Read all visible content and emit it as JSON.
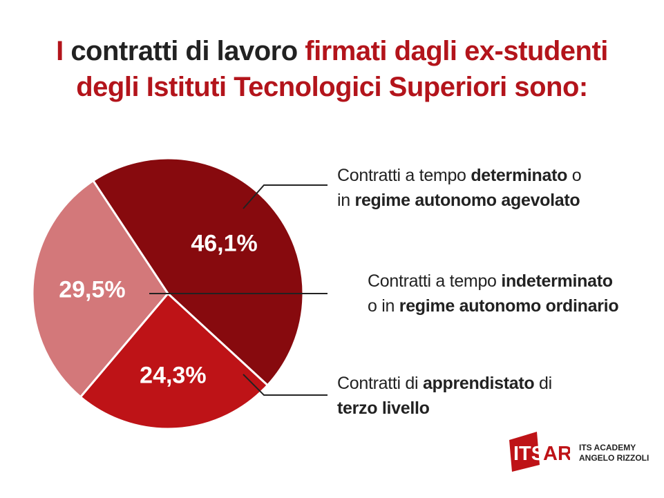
{
  "title": {
    "part1": "I",
    "part2": "contratti di lavoro",
    "part3": "firmati dagli ex-studenti",
    "line2": "degli Istituti Tecnologici Superiori sono:"
  },
  "colors": {
    "slice_dark": "#870a0e",
    "slice_red": "#be1317",
    "slice_pink": "#d3787a",
    "title_red": "#b3141b",
    "text_dark": "#222222"
  },
  "chart_data": {
    "type": "pie",
    "slices": [
      {
        "label_text": "46,1%",
        "value": 46.1,
        "color": "#870a0e"
      },
      {
        "label_text": "24,3%",
        "value": 24.3,
        "color": "#be1317"
      },
      {
        "label_text": "29,5%",
        "value": 29.5,
        "color": "#d3787a"
      }
    ],
    "legend": [
      {
        "line1_a": "Contratti a tempo ",
        "line1_b": "determinato",
        "line1_c": " o",
        "line2_a": "in ",
        "line2_b": "regime autonomo agevolato"
      },
      {
        "line1_a": "Contratti a tempo ",
        "line1_b": "indeterminato",
        "line1_c": "",
        "line2_a": "o in ",
        "line2_b": "regime autonomo ordinario"
      },
      {
        "line1_a": "Contratti di ",
        "line1_b": "apprendistato",
        "line1_c": " di",
        "line2_a": "",
        "line2_b": "terzo livello"
      }
    ]
  },
  "logo": {
    "mark": "ITSAR",
    "line1": "ITS ACADEMY",
    "line2": "ANGELO RIZZOLI"
  }
}
